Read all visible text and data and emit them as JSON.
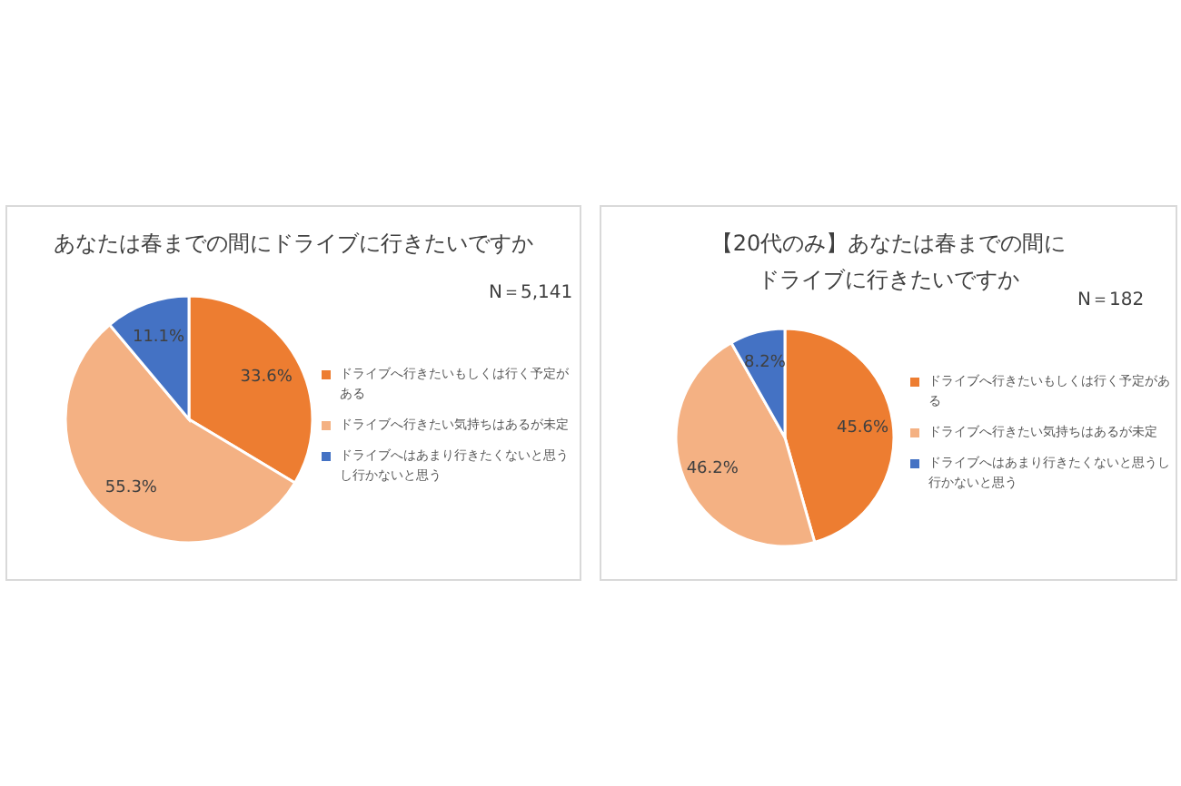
{
  "chart_data": [
    {
      "type": "pie",
      "title": "あなたは春までの間にドライブに行きたいですか",
      "subtitle": "N＝5,141",
      "categories": [
        "ドライブへ行きたいもしくは行く予定がある",
        "ドライブへ行きたい気持ちはあるが未定",
        "ドライブへはあまり行きたくないと思うし行かないと思う"
      ],
      "values": [
        33.6,
        55.3,
        11.1
      ],
      "value_labels": [
        "33.6%",
        "55.3%",
        "11.1%"
      ],
      "colors": [
        "#ed7d31",
        "#f4b183",
        "#4472c4"
      ],
      "legend": "right"
    },
    {
      "type": "pie",
      "title": "【20代のみ】あなたは春までの間にドライブに行きたいですか",
      "subtitle": "N＝182",
      "categories": [
        "ドライブへ行きたいもしくは行く予定がある",
        "ドライブへ行きたい気持ちはあるが未定",
        "ドライブへはあまり行きたくないと思うし行かないと思う"
      ],
      "values": [
        45.6,
        46.2,
        8.2
      ],
      "value_labels": [
        "45.6%",
        "46.2%",
        "8.2%"
      ],
      "colors": [
        "#ed7d31",
        "#f4b183",
        "#4472c4"
      ],
      "legend": "right"
    }
  ]
}
